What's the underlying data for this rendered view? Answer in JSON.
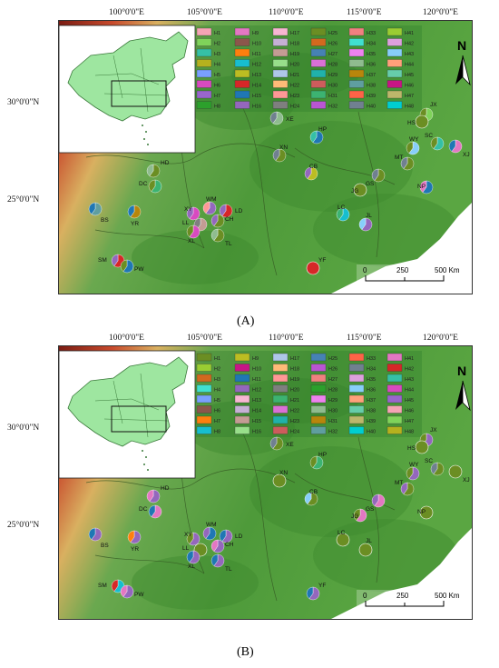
{
  "lon_labels": [
    "100°0'0\"E",
    "105°0'0\"E",
    "110°0'0\"E",
    "115°0'0\"E",
    "120°0'0\"E"
  ],
  "lat_labels": [
    "30°0'0\"N",
    "25°0'0\"N"
  ],
  "scale": {
    "zero": "0",
    "mid": "250",
    "end": "500 Km"
  },
  "north": "N",
  "panels": [
    {
      "caption": "(A)",
      "haplotype_prefix": "H",
      "legend_cols": 6,
      "legend_rows": 8,
      "legend_colors": [
        "#f4a4b4",
        "#7fd35a",
        "#35c0a6",
        "#b5b11e",
        "#7aa0ff",
        "#d84ac0",
        "#9966cc",
        "#2ca02c",
        "#e377c2",
        "#8c564b",
        "#ff7f0e",
        "#17becf",
        "#bcbd22",
        "#d62728",
        "#1f77b4",
        "#9467bd",
        "#f7b6d2",
        "#c5b0d5",
        "#c49c94",
        "#98df8a",
        "#aec7e8",
        "#ffbb78",
        "#ff9896",
        "#7f7f7f",
        "#6b8e23",
        "#d2691e",
        "#4682b4",
        "#da70d6",
        "#20b2aa",
        "#cd5c5c",
        "#3cb371",
        "#ba55d3",
        "#f08080",
        "#40e0d0",
        "#ee82ee",
        "#8fbc8f",
        "#b8860b",
        "#5f9ea0",
        "#ff6347",
        "#708090",
        "#9acd32",
        "#dda0dd",
        "#87cefa",
        "#ffa07a",
        "#66cdaa",
        "#c71585",
        "#bdb76b",
        "#00ced1"
      ],
      "sites": [
        {
          "code": "HD",
          "colors": [
            "#6b8e23",
            "#8fbc8f"
          ]
        },
        {
          "code": "DC",
          "colors": [
            "#3cb371",
            "#6b8e23"
          ]
        },
        {
          "code": "BS",
          "colors": [
            "#5f9ea0",
            "#1f77b4"
          ]
        },
        {
          "code": "YR",
          "colors": [
            "#b8860b",
            "#1f77b4"
          ]
        },
        {
          "code": "SM",
          "colors": [
            "#d62728",
            "#9467bd"
          ]
        },
        {
          "code": "PW",
          "colors": [
            "#1f77b4",
            "#6b8e23"
          ]
        },
        {
          "code": "XY",
          "colors": [
            "#d84ac0",
            "#9467bd"
          ]
        },
        {
          "code": "WM",
          "colors": [
            "#9467bd",
            "#ff9896"
          ]
        },
        {
          "code": "LD",
          "colors": [
            "#d62728",
            "#9467bd"
          ]
        },
        {
          "code": "LL",
          "colors": [
            "#c49c94",
            "#7f7f7f"
          ]
        },
        {
          "code": "CH",
          "colors": [
            "#6b8e23",
            "#9467bd"
          ]
        },
        {
          "code": "XL",
          "colors": [
            "#d84ac0",
            "#6b8e23"
          ]
        },
        {
          "code": "TL",
          "colors": [
            "#6b8e23",
            "#8fbc8f"
          ]
        },
        {
          "code": "XE",
          "colors": [
            "#8fbc8f",
            "#708090"
          ]
        },
        {
          "code": "HP",
          "colors": [
            "#1f77b4",
            "#35c0a6"
          ]
        },
        {
          "code": "XN",
          "colors": [
            "#6b8e23",
            "#708090"
          ]
        },
        {
          "code": "CB",
          "colors": [
            "#bcbd22",
            "#9467bd"
          ]
        },
        {
          "code": "JG",
          "colors": [
            "#6b8e23"
          ]
        },
        {
          "code": "GS",
          "colors": [
            "#6b8e23",
            "#708090"
          ]
        },
        {
          "code": "LC",
          "colors": [
            "#17becf",
            "#3cb371"
          ]
        },
        {
          "code": "JL",
          "colors": [
            "#9467bd",
            "#87cefa"
          ]
        },
        {
          "code": "YF",
          "colors": [
            "#d62728"
          ]
        },
        {
          "code": "JX",
          "colors": [
            "#7fd35a",
            "#6b8e23"
          ]
        },
        {
          "code": "HS",
          "colors": [
            "#6b8e23"
          ]
        },
        {
          "code": "WY",
          "colors": [
            "#87cefa",
            "#6b8e23"
          ]
        },
        {
          "code": "SC",
          "colors": [
            "#35c0a6",
            "#6b8e23"
          ]
        },
        {
          "code": "XJ",
          "colors": [
            "#e377c2",
            "#1f77b4"
          ]
        },
        {
          "code": "MT",
          "colors": [
            "#6b8e23",
            "#708090"
          ]
        },
        {
          "code": "NP",
          "colors": [
            "#1f77b4",
            "#e377c2"
          ]
        }
      ]
    },
    {
      "caption": "(B)",
      "haplotype_prefix": "H",
      "legend_cols": 6,
      "legend_rows": 8,
      "legend_colors": [
        "#6b8e23",
        "#9acd32",
        "#d2691e",
        "#40e0d0",
        "#7aa0ff",
        "#8c564b",
        "#ff7f0e",
        "#17becf",
        "#bcbd22",
        "#c71585",
        "#1f77b4",
        "#9467bd",
        "#f7b6d2",
        "#c5b0d5",
        "#c49c94",
        "#98df8a",
        "#aec7e8",
        "#ffbb78",
        "#ff9896",
        "#7f7f7f",
        "#3cb371",
        "#da70d6",
        "#20b2aa",
        "#cd5c5c",
        "#4682b4",
        "#ba55d3",
        "#f08080",
        "#2ca02c",
        "#ee82ee",
        "#8fbc8f",
        "#b8860b",
        "#5f9ea0",
        "#ff6347",
        "#708090",
        "#dda0dd",
        "#87cefa",
        "#ffa07a",
        "#66cdaa",
        "#bdb76b",
        "#00ced1",
        "#e377c2",
        "#d62728",
        "#35c0a6",
        "#d84ac0",
        "#9966cc",
        "#f4a4b4",
        "#7fd35a",
        "#b5b11e"
      ],
      "sites": [
        {
          "code": "HD",
          "colors": [
            "#9467bd",
            "#e377c2"
          ]
        },
        {
          "code": "DC",
          "colors": [
            "#e377c2",
            "#1f77b4"
          ]
        },
        {
          "code": "BS",
          "colors": [
            "#9467bd",
            "#1f77b4"
          ]
        },
        {
          "code": "YR",
          "colors": [
            "#9467bd",
            "#ff7f0e"
          ]
        },
        {
          "code": "SM",
          "colors": [
            "#17becf",
            "#d62728"
          ]
        },
        {
          "code": "PW",
          "colors": [
            "#9467bd",
            "#e377c2"
          ]
        },
        {
          "code": "XY",
          "colors": [
            "#9467bd",
            "#6b8e23"
          ]
        },
        {
          "code": "WM",
          "colors": [
            "#1f77b4",
            "#9467bd"
          ]
        },
        {
          "code": "LD",
          "colors": [
            "#9467bd",
            "#1f77b4"
          ]
        },
        {
          "code": "LL",
          "colors": [
            "#6b8e23"
          ]
        },
        {
          "code": "CH",
          "colors": [
            "#9467bd",
            "#e377c2"
          ]
        },
        {
          "code": "XL",
          "colors": [
            "#9467bd",
            "#1f77b4"
          ]
        },
        {
          "code": "TL",
          "colors": [
            "#9467bd",
            "#1f77b4"
          ]
        },
        {
          "code": "XE",
          "colors": [
            "#6b8e23",
            "#708090"
          ]
        },
        {
          "code": "HP",
          "colors": [
            "#3cb371",
            "#6b8e23"
          ]
        },
        {
          "code": "XN",
          "colors": [
            "#6b8e23"
          ]
        },
        {
          "code": "CB",
          "colors": [
            "#6b8e23",
            "#87cefa"
          ]
        },
        {
          "code": "JG",
          "colors": [
            "#e377c2",
            "#6b8e23"
          ]
        },
        {
          "code": "GS",
          "colors": [
            "#e377c2",
            "#9467bd"
          ]
        },
        {
          "code": "LC",
          "colors": [
            "#6b8e23"
          ]
        },
        {
          "code": "JL",
          "colors": [
            "#6b8e23"
          ]
        },
        {
          "code": "YF",
          "colors": [
            "#9467bd",
            "#1f77b4"
          ]
        },
        {
          "code": "JX",
          "colors": [
            "#9467bd",
            "#6b8e23"
          ]
        },
        {
          "code": "HS",
          "colors": [
            "#6b8e23"
          ]
        },
        {
          "code": "WY",
          "colors": [
            "#9467bd",
            "#6b8e23"
          ]
        },
        {
          "code": "SC",
          "colors": [
            "#6b8e23",
            "#708090"
          ]
        },
        {
          "code": "XJ",
          "colors": [
            "#6b8e23"
          ]
        },
        {
          "code": "MT",
          "colors": [
            "#6b8e23",
            "#9467bd"
          ]
        },
        {
          "code": "NP",
          "colors": [
            "#6b8e23"
          ]
        }
      ]
    }
  ]
}
